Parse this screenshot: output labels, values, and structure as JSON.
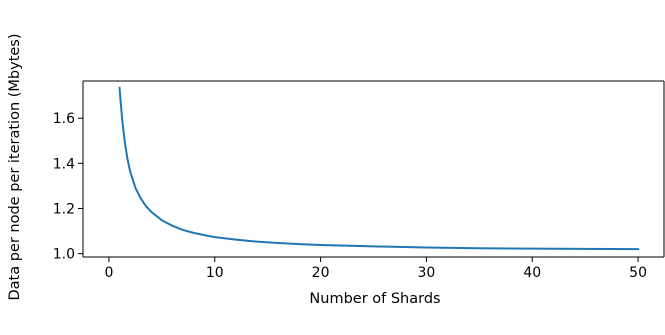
{
  "chart_data": {
    "type": "line",
    "title": "",
    "xlabel": "Number of Shards",
    "ylabel": "Data per node per iteration (Mbytes)",
    "xlim": [
      -2.45,
      52.45
    ],
    "ylim": [
      0.985,
      1.765
    ],
    "xticks": [
      0,
      10,
      20,
      30,
      40,
      50
    ],
    "xtick_labels": [
      "0",
      "10",
      "20",
      "30",
      "40",
      "50"
    ],
    "yticks": [
      1.0,
      1.2,
      1.4,
      1.6
    ],
    "ytick_labels": [
      "1.0",
      "1.2",
      "1.4",
      "1.6"
    ],
    "grid": false,
    "legend": "none",
    "series": [
      {
        "color": "#1f77b4",
        "x": [
          1,
          1.25,
          1.5,
          1.75,
          2,
          2.5,
          3,
          3.5,
          4,
          5,
          6,
          7,
          8,
          9,
          10,
          12,
          14,
          16,
          18,
          20,
          25,
          30,
          35,
          40,
          45,
          50
        ],
        "y": [
          1.735,
          1.595,
          1.494,
          1.42,
          1.365,
          1.292,
          1.245,
          1.21,
          1.185,
          1.148,
          1.123,
          1.105,
          1.092,
          1.082,
          1.073,
          1.062,
          1.053,
          1.047,
          1.042,
          1.038,
          1.032,
          1.027,
          1.024,
          1.022,
          1.021,
          1.02
        ]
      }
    ]
  }
}
